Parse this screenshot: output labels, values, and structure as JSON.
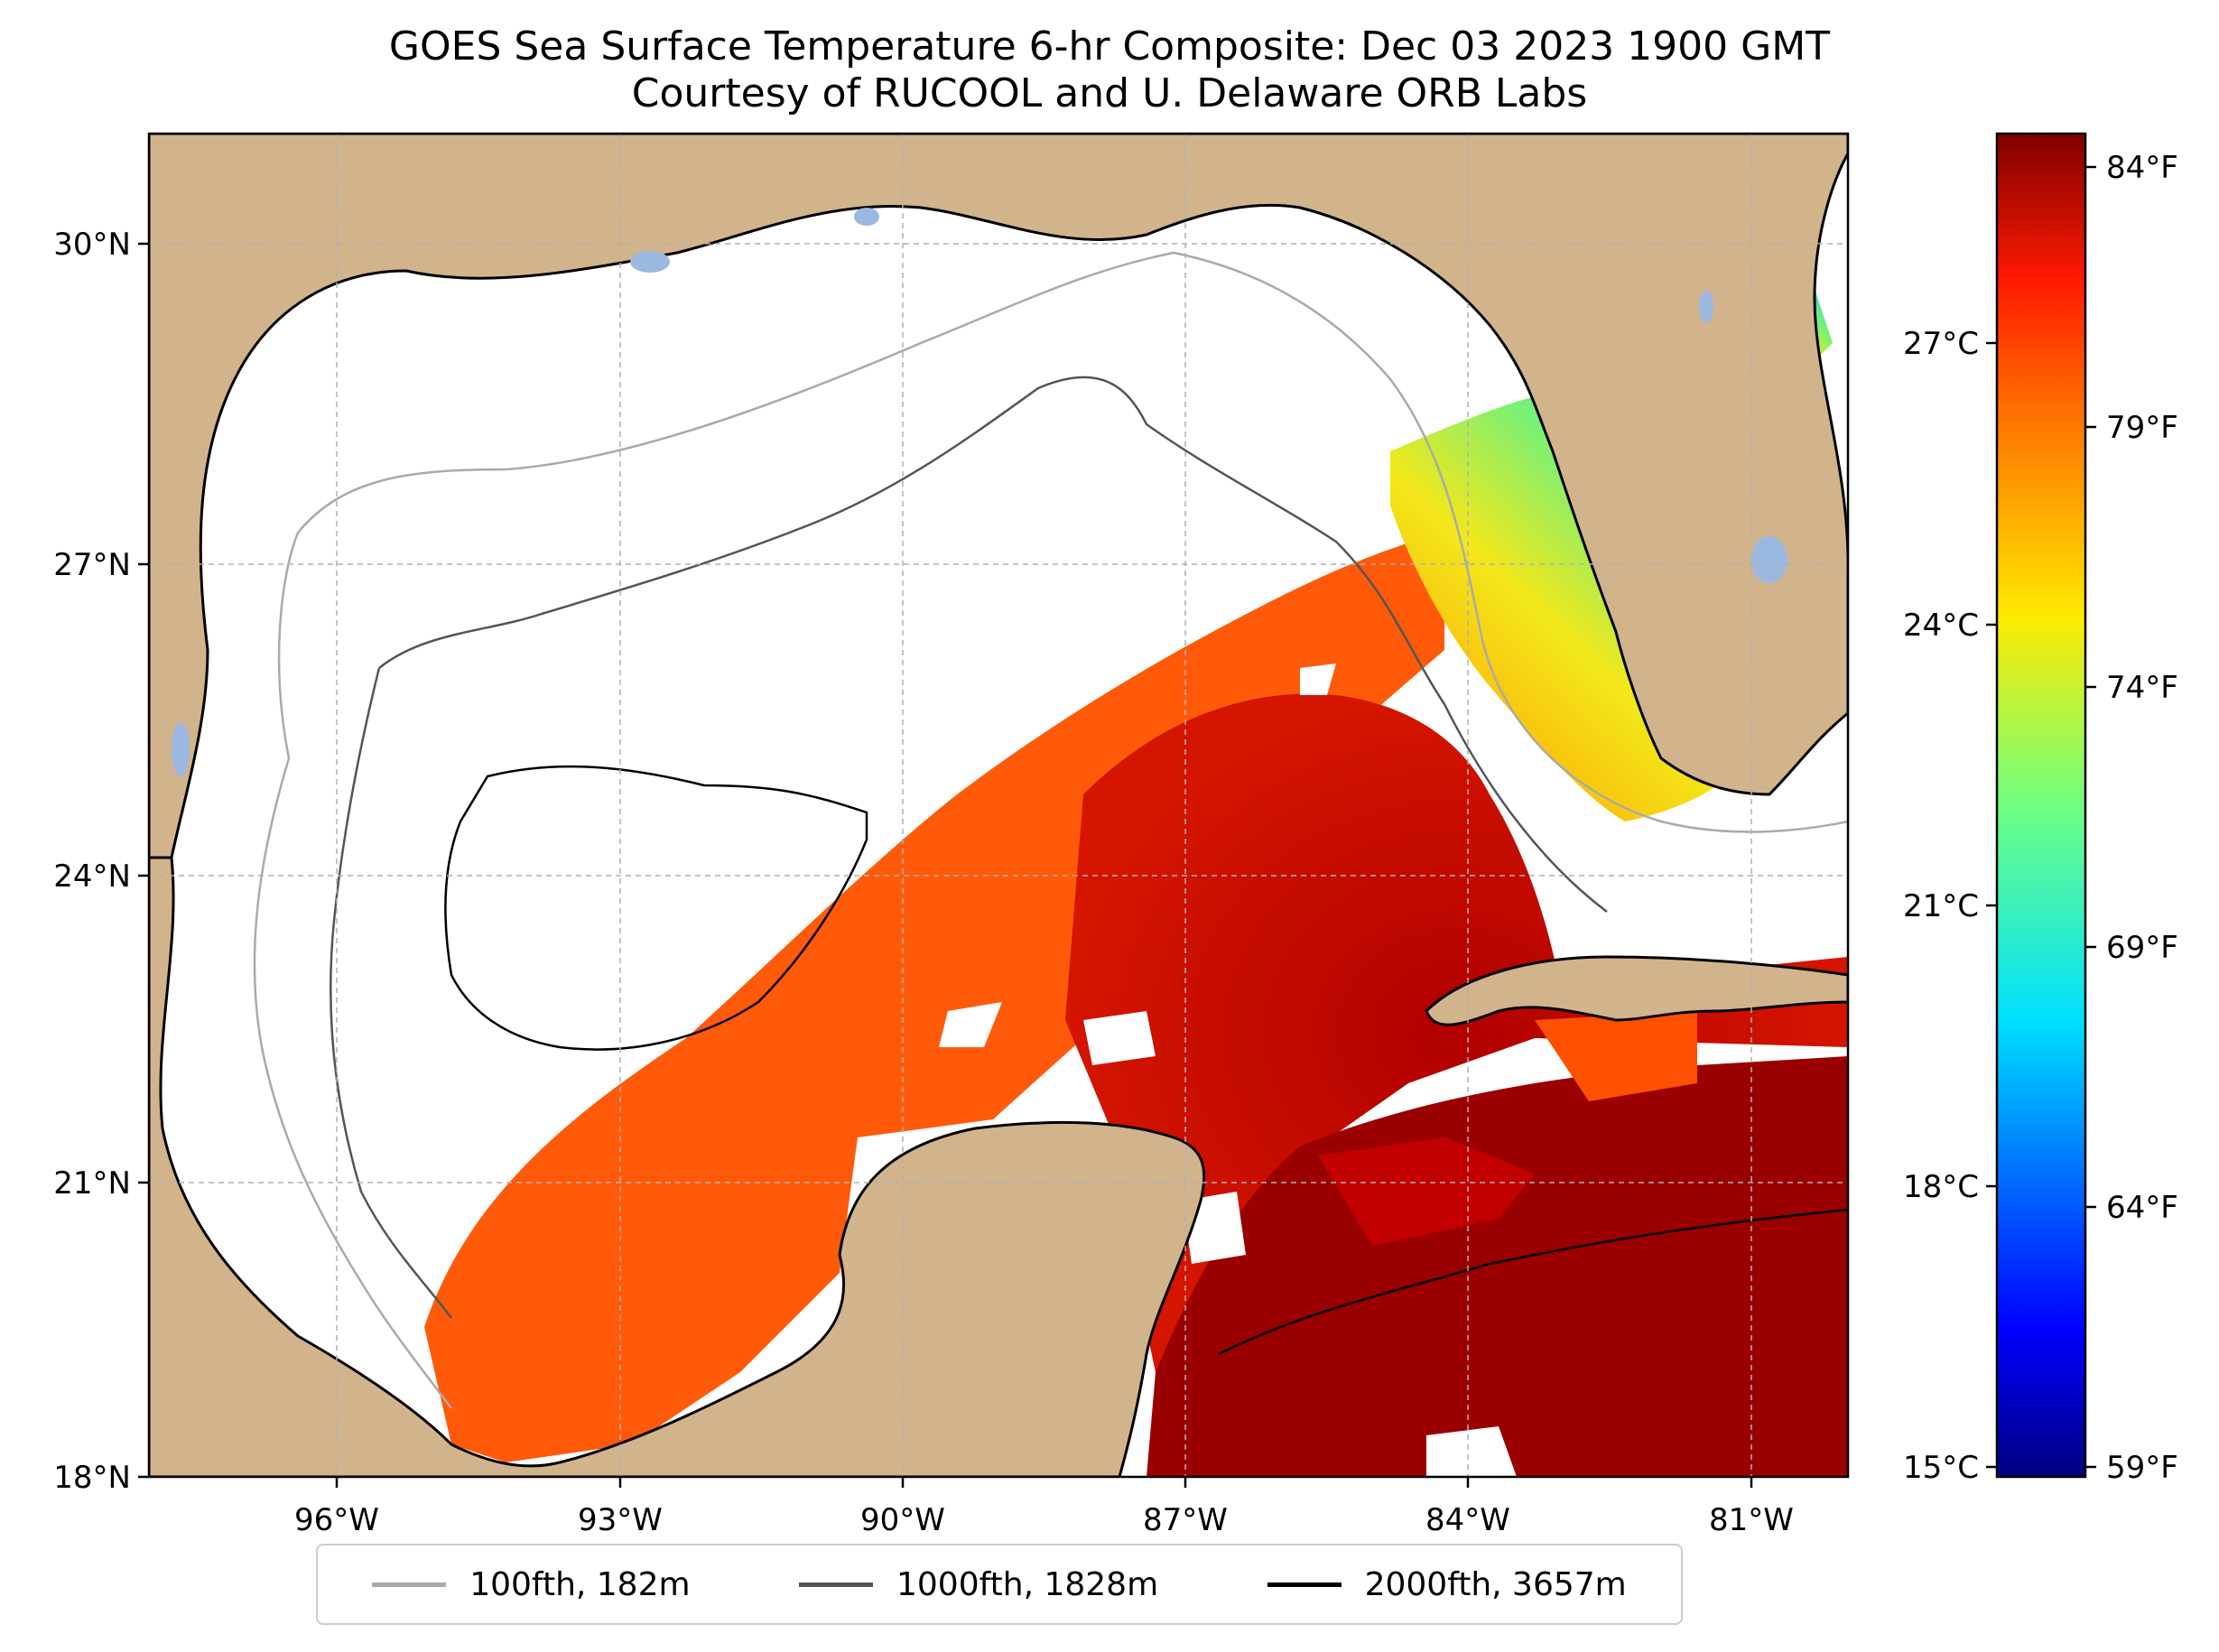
{
  "title_line1": "GOES Sea Surface Temperature 6-hr Composite: Dec 03 2023 1900 GMT",
  "title_line2": "Courtesy of RUCOOL and U. Delaware ORB Labs",
  "lat_labels": [
    "30°N",
    "27°N",
    "24°N",
    "21°N",
    "18°N"
  ],
  "lon_labels": [
    "96°W",
    "93°W",
    "90°W",
    "87°W",
    "84°W",
    "81°W"
  ],
  "colorbar": {
    "celsius_labels": [
      "27°C",
      "24°C",
      "21°C",
      "18°C",
      "15°C"
    ],
    "fahrenheit_labels": [
      "84°F",
      "79°F",
      "74°F",
      "69°F",
      "64°F",
      "59°F"
    ],
    "colormap": "jet"
  },
  "legend": [
    {
      "label": "100fth, 182m",
      "color": "#aaaaaa"
    },
    {
      "label": "1000fth, 1828m",
      "color": "#555555"
    },
    {
      "label": "2000fth, 3657m",
      "color": "#000000"
    }
  ],
  "colors": {
    "land": "#d2b48c",
    "no_data": "#ffffff",
    "lakes": "#9ab8e0",
    "gridline": "#b0b0b0"
  }
}
